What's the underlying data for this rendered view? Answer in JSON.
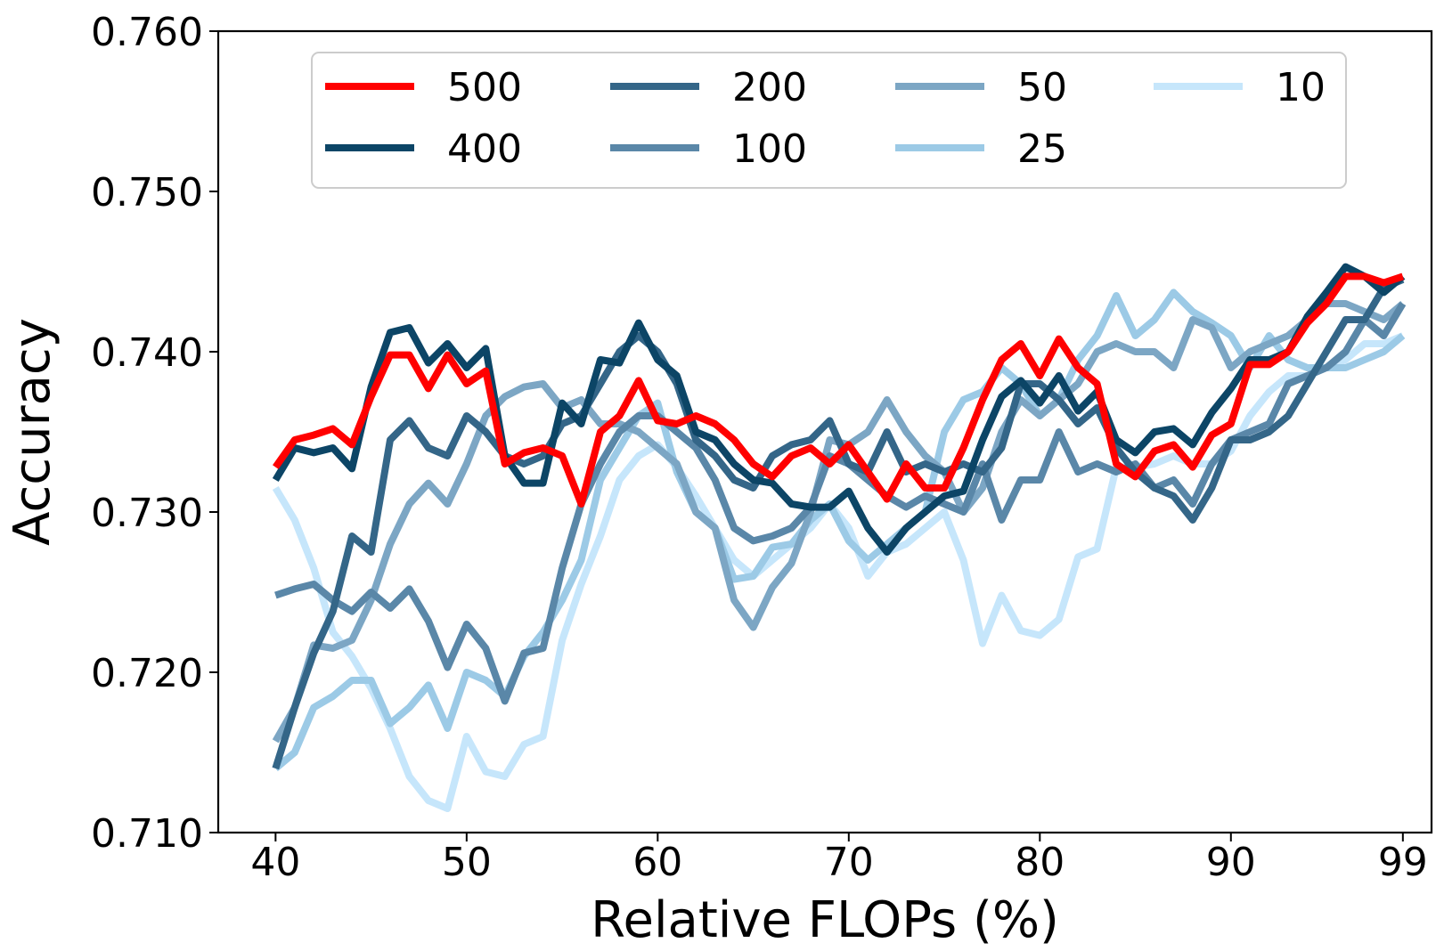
{
  "chart_data": {
    "type": "line",
    "title": "",
    "xlabel": "Relative FLOPs (%)",
    "ylabel": "Accuracy",
    "xlim": [
      37,
      100.5
    ],
    "ylim": [
      0.71,
      0.76
    ],
    "xticks": [
      40,
      50,
      60,
      70,
      80,
      90,
      99
    ],
    "xtick_labels": [
      "40",
      "50",
      "60",
      "70",
      "80",
      "90",
      "99"
    ],
    "yticks": [
      0.71,
      0.72,
      0.73,
      0.74,
      0.75,
      0.76
    ],
    "ytick_labels": [
      "0.710",
      "0.720",
      "0.730",
      "0.740",
      "0.750",
      "0.760"
    ],
    "legend": {
      "position": "top",
      "columns": 4
    },
    "x": [
      40,
      41,
      42,
      43,
      44,
      45,
      46,
      47,
      48,
      49,
      50,
      51,
      52,
      53,
      54,
      55,
      56,
      57,
      58,
      59,
      60,
      61,
      62,
      63,
      64,
      65,
      66,
      67,
      68,
      69,
      70,
      71,
      72,
      73,
      74,
      75,
      76,
      77,
      78,
      79,
      80,
      81,
      82,
      83,
      84,
      85,
      86,
      87,
      88,
      89,
      90,
      91,
      92,
      93,
      94,
      95,
      96,
      97,
      98,
      99
    ],
    "series": [
      {
        "name": "10",
        "color": "#c6e6fb",
        "values": [
          0.7315,
          0.7295,
          0.7265,
          0.7225,
          0.721,
          0.719,
          0.7165,
          0.7135,
          0.712,
          0.7115,
          0.716,
          0.7138,
          0.7135,
          0.7155,
          0.716,
          0.722,
          0.7255,
          0.7285,
          0.732,
          0.7335,
          0.7342,
          0.7328,
          0.731,
          0.729,
          0.727,
          0.726,
          0.727,
          0.728,
          0.729,
          0.7305,
          0.729,
          0.726,
          0.7275,
          0.728,
          0.729,
          0.73,
          0.727,
          0.7218,
          0.7248,
          0.7226,
          0.7223,
          0.7233,
          0.7272,
          0.7277,
          0.7328,
          0.7328,
          0.733,
          0.7335,
          0.733,
          0.733,
          0.7338,
          0.736,
          0.7375,
          0.7385,
          0.7385,
          0.739,
          0.7395,
          0.7405,
          0.7405,
          0.741
        ]
      },
      {
        "name": "25",
        "color": "#9ccae6",
        "values": [
          0.714,
          0.715,
          0.7178,
          0.7185,
          0.7195,
          0.7195,
          0.7168,
          0.7178,
          0.7192,
          0.7165,
          0.72,
          0.7195,
          0.7185,
          0.721,
          0.7225,
          0.7245,
          0.727,
          0.732,
          0.734,
          0.736,
          0.7368,
          0.7325,
          0.73,
          0.729,
          0.7258,
          0.726,
          0.7278,
          0.728,
          0.7295,
          0.7305,
          0.7282,
          0.727,
          0.728,
          0.729,
          0.73,
          0.735,
          0.737,
          0.7375,
          0.739,
          0.738,
          0.736,
          0.737,
          0.7395,
          0.741,
          0.7435,
          0.741,
          0.742,
          0.7437,
          0.7425,
          0.7418,
          0.741,
          0.739,
          0.741,
          0.7395,
          0.739,
          0.739,
          0.739,
          0.7395,
          0.74,
          0.741
        ]
      },
      {
        "name": "50",
        "color": "#7ca6c4",
        "values": [
          0.7157,
          0.7178,
          0.7217,
          0.7215,
          0.722,
          0.7245,
          0.728,
          0.7305,
          0.7318,
          0.7305,
          0.733,
          0.736,
          0.7372,
          0.7378,
          0.738,
          0.7365,
          0.737,
          0.7355,
          0.7355,
          0.735,
          0.734,
          0.733,
          0.73,
          0.729,
          0.7245,
          0.7228,
          0.7253,
          0.7268,
          0.73,
          0.7345,
          0.7342,
          0.735,
          0.737,
          0.735,
          0.7335,
          0.7325,
          0.73,
          0.7315,
          0.735,
          0.737,
          0.736,
          0.737,
          0.738,
          0.74,
          0.7405,
          0.74,
          0.74,
          0.739,
          0.742,
          0.7415,
          0.739,
          0.74,
          0.7405,
          0.741,
          0.742,
          0.743,
          0.743,
          0.7425,
          0.742,
          0.743
        ]
      },
      {
        "name": "100",
        "color": "#5a87a8",
        "values": [
          0.7248,
          0.7252,
          0.7255,
          0.7245,
          0.7238,
          0.725,
          0.724,
          0.7252,
          0.7232,
          0.7203,
          0.723,
          0.7215,
          0.7182,
          0.7212,
          0.7215,
          0.7265,
          0.7305,
          0.733,
          0.735,
          0.736,
          0.736,
          0.735,
          0.734,
          0.732,
          0.729,
          0.7282,
          0.7285,
          0.729,
          0.7303,
          0.7335,
          0.733,
          0.732,
          0.731,
          0.7303,
          0.731,
          0.7305,
          0.73,
          0.733,
          0.7295,
          0.732,
          0.732,
          0.735,
          0.7325,
          0.733,
          0.7325,
          0.733,
          0.7315,
          0.732,
          0.7305,
          0.733,
          0.7345,
          0.735,
          0.7355,
          0.738,
          0.7385,
          0.739,
          0.74,
          0.742,
          0.741,
          0.743
        ]
      },
      {
        "name": "200",
        "color": "#346688",
        "values": [
          0.714,
          0.7178,
          0.7212,
          0.7238,
          0.7285,
          0.7275,
          0.7345,
          0.7357,
          0.734,
          0.7335,
          0.736,
          0.735,
          0.7335,
          0.733,
          0.7335,
          0.7355,
          0.736,
          0.738,
          0.74,
          0.741,
          0.74,
          0.738,
          0.7345,
          0.7335,
          0.732,
          0.7315,
          0.7335,
          0.7342,
          0.7345,
          0.7357,
          0.733,
          0.7325,
          0.735,
          0.7325,
          0.733,
          0.7325,
          0.733,
          0.7325,
          0.734,
          0.738,
          0.738,
          0.737,
          0.7355,
          0.7365,
          0.734,
          0.7325,
          0.7315,
          0.731,
          0.7295,
          0.7315,
          0.7345,
          0.7345,
          0.735,
          0.736,
          0.738,
          0.74,
          0.742,
          0.742,
          0.744,
          0.7445
        ]
      },
      {
        "name": "400",
        "color": "#0c4566",
        "values": [
          0.732,
          0.734,
          0.7337,
          0.734,
          0.7327,
          0.7378,
          0.7412,
          0.7415,
          0.7393,
          0.7405,
          0.739,
          0.7402,
          0.7335,
          0.7318,
          0.7318,
          0.7368,
          0.7355,
          0.7395,
          0.7393,
          0.7418,
          0.7395,
          0.7385,
          0.735,
          0.7345,
          0.733,
          0.732,
          0.7318,
          0.7305,
          0.7303,
          0.7303,
          0.7313,
          0.729,
          0.7275,
          0.729,
          0.73,
          0.731,
          0.7313,
          0.7345,
          0.7372,
          0.7382,
          0.7368,
          0.7385,
          0.7363,
          0.7375,
          0.7345,
          0.7337,
          0.735,
          0.7352,
          0.7342,
          0.7362,
          0.7377,
          0.7395,
          0.7395,
          0.74,
          0.7422,
          0.7437,
          0.7453,
          0.7447,
          0.7437,
          0.7447
        ]
      },
      {
        "name": "500",
        "color": "#ff0000",
        "values": [
          0.7328,
          0.7345,
          0.7348,
          0.7352,
          0.7342,
          0.7372,
          0.7398,
          0.7398,
          0.7377,
          0.7398,
          0.738,
          0.7388,
          0.733,
          0.7337,
          0.734,
          0.7335,
          0.7305,
          0.735,
          0.736,
          0.7382,
          0.7357,
          0.7355,
          0.736,
          0.7355,
          0.7345,
          0.733,
          0.7322,
          0.7335,
          0.734,
          0.733,
          0.7342,
          0.7325,
          0.7308,
          0.733,
          0.7315,
          0.7315,
          0.734,
          0.737,
          0.7395,
          0.7405,
          0.7385,
          0.7408,
          0.739,
          0.738,
          0.733,
          0.7322,
          0.7338,
          0.7342,
          0.7328,
          0.7348,
          0.7355,
          0.7392,
          0.7392,
          0.74,
          0.7418,
          0.743,
          0.7447,
          0.7447,
          0.7443,
          0.7447
        ]
      }
    ],
    "legend_order": [
      "500",
      "400",
      "200",
      "100",
      "50",
      "25",
      "10"
    ]
  }
}
